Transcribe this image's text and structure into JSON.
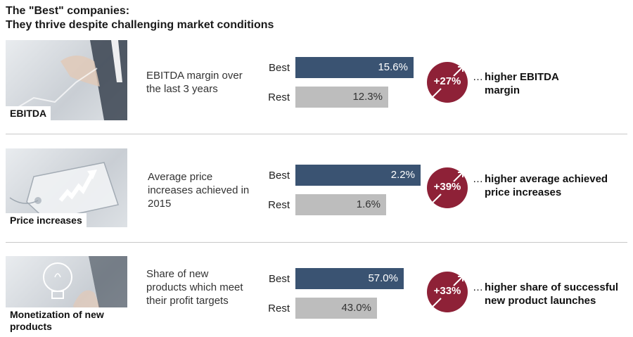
{
  "header": {
    "title_line1": "The \"Best\" companies:",
    "title_line2": "They thrive despite challenging market conditions"
  },
  "colors": {
    "best": "#3a5372",
    "rest": "#bdbdbd",
    "accent": "#8e2137"
  },
  "chart_data": {
    "type": "bar",
    "orientation": "horizontal",
    "categories": [
      "Best",
      "Rest"
    ],
    "panels": [
      {
        "label": "EBITDA",
        "description": "EBITDA margin over the last 3 years",
        "values": [
          15.6,
          12.3
        ],
        "value_labels": [
          "15.6%",
          "12.3%"
        ],
        "uplift": "+27%",
        "result": "higher EBITDA margin"
      },
      {
        "label": "Price increases",
        "description": "Average price increases achieved in 2015",
        "values": [
          2.2,
          1.6
        ],
        "value_labels": [
          "2.2%",
          "1.6%"
        ],
        "uplift": "+39%",
        "result": "higher average achieved price increases"
      },
      {
        "label": "Monetization of new products",
        "description": "Share of new products which meet their profit targets",
        "values": [
          57.0,
          43.0
        ],
        "value_labels": [
          "57.0%",
          "43.0%"
        ],
        "uplift": "+33%",
        "result": "higher share of successful new product launches"
      }
    ]
  },
  "result_prefix": "…"
}
